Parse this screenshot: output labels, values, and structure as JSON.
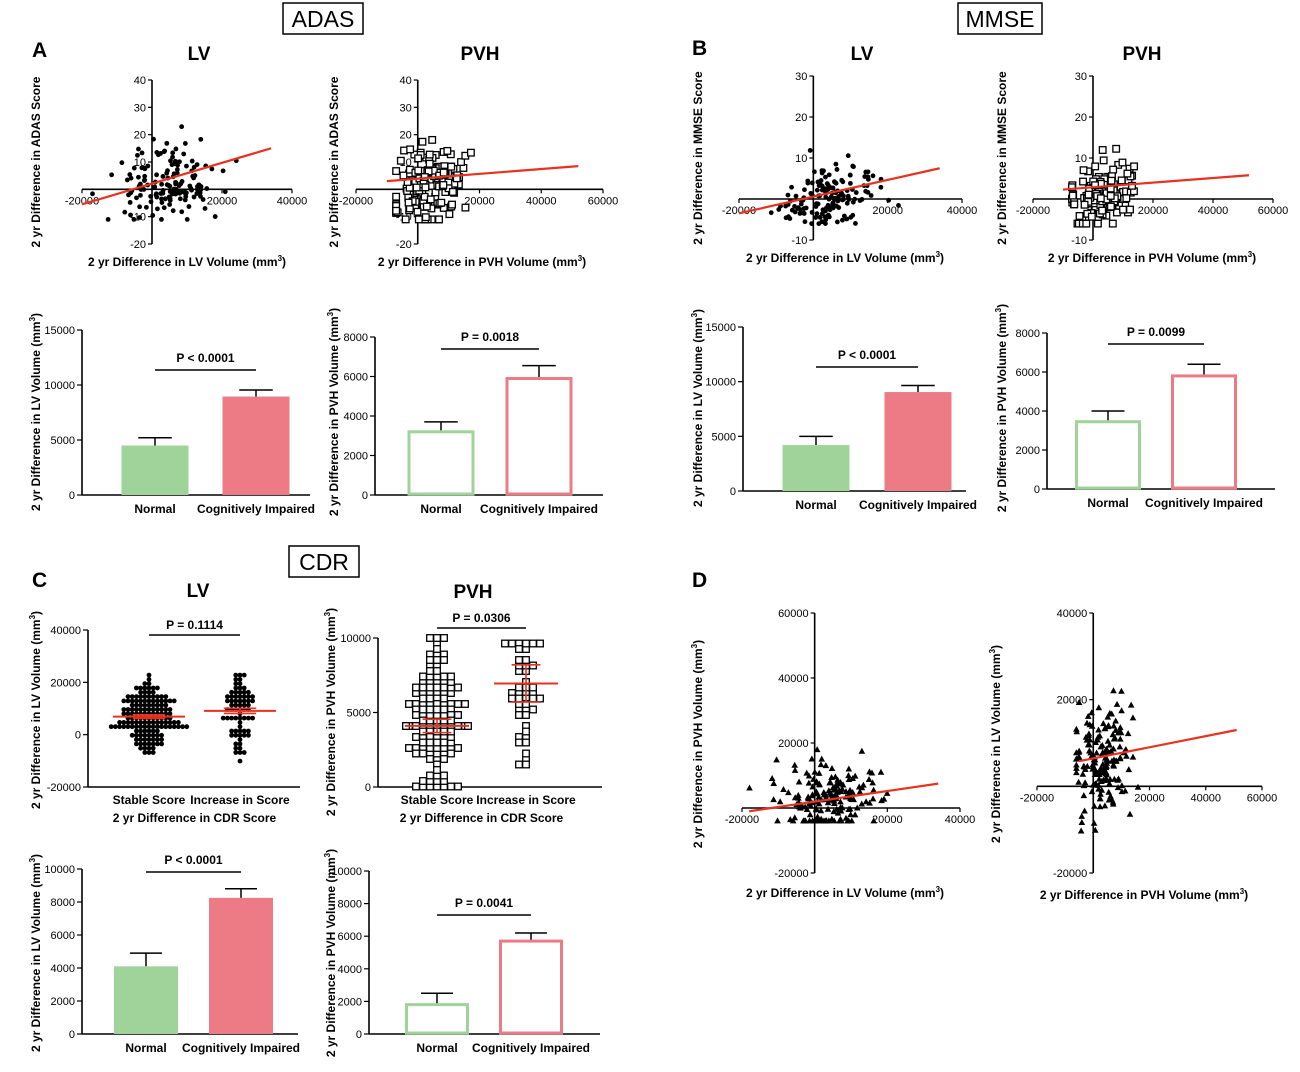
{
  "sections": {
    "adas": "ADAS",
    "mmse": "MMSE",
    "cdr": "CDR"
  },
  "panel_letters": {
    "a": "A",
    "b": "B",
    "c": "C",
    "d": "D"
  },
  "colors": {
    "fit_line": "#e8321e",
    "normal_fill": "#9fd39a",
    "impaired_fill": "#ec7b85",
    "normal_stroke": "#9fd39a",
    "impaired_stroke": "#ec7b85",
    "ink": "#000000",
    "mean_line": "#e8321e"
  },
  "chart_data": [
    {
      "id": "adas_lv_scatter",
      "type": "scatter",
      "title": "LV",
      "xlabel": "2 yr Difference in LV Volume",
      "xunit": "(mm",
      "ylabel": "2 yr Difference in ADAS Score",
      "xlim": [
        -20000,
        40000
      ],
      "ylim": [
        -20,
        40
      ],
      "xticks": [
        "-20000",
        "20000",
        "40000"
      ],
      "yticks": [
        "40",
        "30",
        "20",
        "10",
        "-10",
        "-20"
      ],
      "marker": "dot",
      "fit": [
        [
          -20000,
          -5.5
        ],
        [
          34000,
          15
        ]
      ]
    },
    {
      "id": "adas_pvh_scatter",
      "type": "scatter",
      "title": "PVH",
      "xlabel": "2 yr Difference in PVH Volume",
      "xunit": "(mm",
      "ylabel": "2 yr Difference in ADAS Score",
      "xlim": [
        -20000,
        60000
      ],
      "ylim": [
        -20,
        40
      ],
      "xticks": [
        "-20000",
        "20000",
        "40000",
        "60000"
      ],
      "yticks": [
        "40",
        "30",
        "20",
        "10",
        "-10",
        "-20"
      ],
      "marker": "square",
      "fit": [
        [
          -10000,
          3
        ],
        [
          52000,
          8.5
        ]
      ]
    },
    {
      "id": "adas_lv_bar",
      "type": "bar",
      "categories": [
        "Normal",
        "Cognitively Impaired"
      ],
      "values": [
        4500,
        8950
      ],
      "errors": [
        700,
        600
      ],
      "ylim": [
        0,
        15000
      ],
      "yticks": [
        "15000",
        "10000",
        "5000",
        "0"
      ],
      "ylabel": "2 yr Difference in LV Volume (mm",
      "pvalue": "P < 0.0001",
      "style": "filled"
    },
    {
      "id": "adas_pvh_bar",
      "type": "bar",
      "categories": [
        "Normal",
        "Cognitively Impaired"
      ],
      "values": [
        3200,
        5900
      ],
      "errors": [
        500,
        650
      ],
      "ylim": [
        0,
        8000
      ],
      "yticks": [
        "8000",
        "6000",
        "4000",
        "2000",
        "0"
      ],
      "ylabel": "2 yr Difference in PVH Volume (mm",
      "pvalue": "P = 0.0018",
      "style": "hollow"
    },
    {
      "id": "mmse_lv_scatter",
      "type": "scatter",
      "title": "LV",
      "xlabel": "2 yr Difference in LV Volume",
      "xunit": "(mm",
      "ylabel": "2 yr Difference in MMSE Score",
      "xlim": [
        -20000,
        40000
      ],
      "ylim": [
        -10,
        30
      ],
      "xticks": [
        "-20000",
        "20000",
        "40000"
      ],
      "yticks": [
        "30",
        "20",
        "10",
        "-10"
      ],
      "marker": "dot",
      "fit": [
        [
          -20000,
          -3.5
        ],
        [
          34000,
          7.5
        ]
      ]
    },
    {
      "id": "mmse_pvh_scatter",
      "type": "scatter",
      "title": "PVH",
      "xlabel": "2 yr Difference in PVH Volume",
      "xunit": "(mm",
      "ylabel": "2 yr Difference in MMSE Score",
      "xlim": [
        -20000,
        60000
      ],
      "ylim": [
        -10,
        30
      ],
      "xticks": [
        "-20000",
        "20000",
        "40000",
        "60000"
      ],
      "yticks": [
        "30",
        "20",
        "10",
        "-10"
      ],
      "marker": "square",
      "fit": [
        [
          -10000,
          2.3
        ],
        [
          52000,
          5.8
        ]
      ]
    },
    {
      "id": "mmse_lv_bar",
      "type": "bar",
      "categories": [
        "Normal",
        "Cognitively Impaired"
      ],
      "values": [
        4200,
        9050
      ],
      "errors": [
        800,
        600
      ],
      "ylim": [
        0,
        15000
      ],
      "yticks": [
        "15000",
        "10000",
        "5000",
        "0"
      ],
      "ylabel": "2 yr Difference in LV Volume (mm",
      "pvalue": "P < 0.0001",
      "style": "filled"
    },
    {
      "id": "mmse_pvh_bar",
      "type": "bar",
      "categories": [
        "Normal",
        "Cognitively Impaired"
      ],
      "values": [
        3450,
        5800
      ],
      "errors": [
        550,
        600
      ],
      "ylim": [
        0,
        8000
      ],
      "yticks": [
        "8000",
        "6000",
        "4000",
        "2000",
        "0"
      ],
      "ylabel": "2 yr Difference in PVH Volume (mm",
      "pvalue": "P = 0.0099",
      "style": "hollow"
    },
    {
      "id": "cdr_lv_dotplot",
      "type": "scatter",
      "title": "LV",
      "categories": [
        "Stable Score",
        "Increase in Score"
      ],
      "xlabel": "2 yr Difference in CDR Score",
      "ylabel": "2 yr Difference in LV Volume",
      "yunit": "(mm",
      "ylim": [
        -20000,
        40000
      ],
      "yticks": [
        "40000",
        "20000",
        "0",
        "-20000"
      ],
      "means": [
        6900,
        9100
      ],
      "sems": [
        700,
        1000
      ],
      "pvalue": "P = 0.1114",
      "marker": "dot"
    },
    {
      "id": "cdr_pvh_dotplot",
      "type": "scatter",
      "title": "PVH",
      "categories": [
        "Stable Score",
        "Increase in Score"
      ],
      "xlabel": "2 yr Difference in CDR Score",
      "ylabel": "2 yr Difference in PVH Volume",
      "yunit": "(mm",
      "ylim": [
        0,
        10000
      ],
      "yticks": [
        "10000",
        "5000",
        "0"
      ],
      "means": [
        4100,
        6950
      ],
      "sems": [
        450,
        1250
      ],
      "pvalue": "P = 0.0306",
      "marker": "square"
    },
    {
      "id": "cdr_lv_bar",
      "type": "bar",
      "categories": [
        "Normal",
        "Cognitively Impaired"
      ],
      "values": [
        4100,
        8250
      ],
      "errors": [
        800,
        550
      ],
      "ylim": [
        0,
        10000
      ],
      "yticks": [
        "10000",
        "8000",
        "6000",
        "4000",
        "2000",
        "0"
      ],
      "ylabel": "2 yr Difference in LV Volume (mm",
      "pvalue": "P < 0.0001",
      "style": "filled"
    },
    {
      "id": "cdr_pvh_bar",
      "type": "bar",
      "categories": [
        "Normal",
        "Cognitively Impaired"
      ],
      "values": [
        1800,
        5700
      ],
      "errors": [
        700,
        500
      ],
      "ylim": [
        0,
        10000
      ],
      "yticks": [
        "10000",
        "8000",
        "6000",
        "4000",
        "2000",
        "0"
      ],
      "ylabel": "2 yr Difference in PVH Volume (mm",
      "pvalue": "P = 0.0041",
      "style": "hollow"
    },
    {
      "id": "d_lv_vs_pvh",
      "type": "scatter",
      "xlabel": "2 yr Difference in LV Volume",
      "xunit": "(mm",
      "ylabel": "2 yr Difference in PVH Volume",
      "yunit": "(mm",
      "xlim": [
        -20000,
        40000
      ],
      "ylim": [
        -20000,
        60000
      ],
      "xticks": [
        "-20000",
        "20000",
        "40000"
      ],
      "yticks": [
        "60000",
        "40000",
        "20000",
        "-20000"
      ],
      "marker": "triangle",
      "fit": [
        [
          -18000,
          -1000
        ],
        [
          34000,
          7500
        ]
      ]
    },
    {
      "id": "d_pvh_vs_lv",
      "type": "scatter",
      "xlabel": "2 yr Difference in PVH Volume",
      "xunit": "(mm",
      "ylabel": "2 yr Difference in LV Volume",
      "yunit": "(mm",
      "xlim": [
        -20000,
        60000
      ],
      "ylim": [
        -20000,
        40000
      ],
      "xticks": [
        "-20000",
        "20000",
        "40000",
        "60000"
      ],
      "yticks": [
        "40000",
        "20000",
        "-20000"
      ],
      "marker": "triangle",
      "fit": [
        [
          -5000,
          5800
        ],
        [
          51000,
          13000
        ]
      ]
    }
  ]
}
